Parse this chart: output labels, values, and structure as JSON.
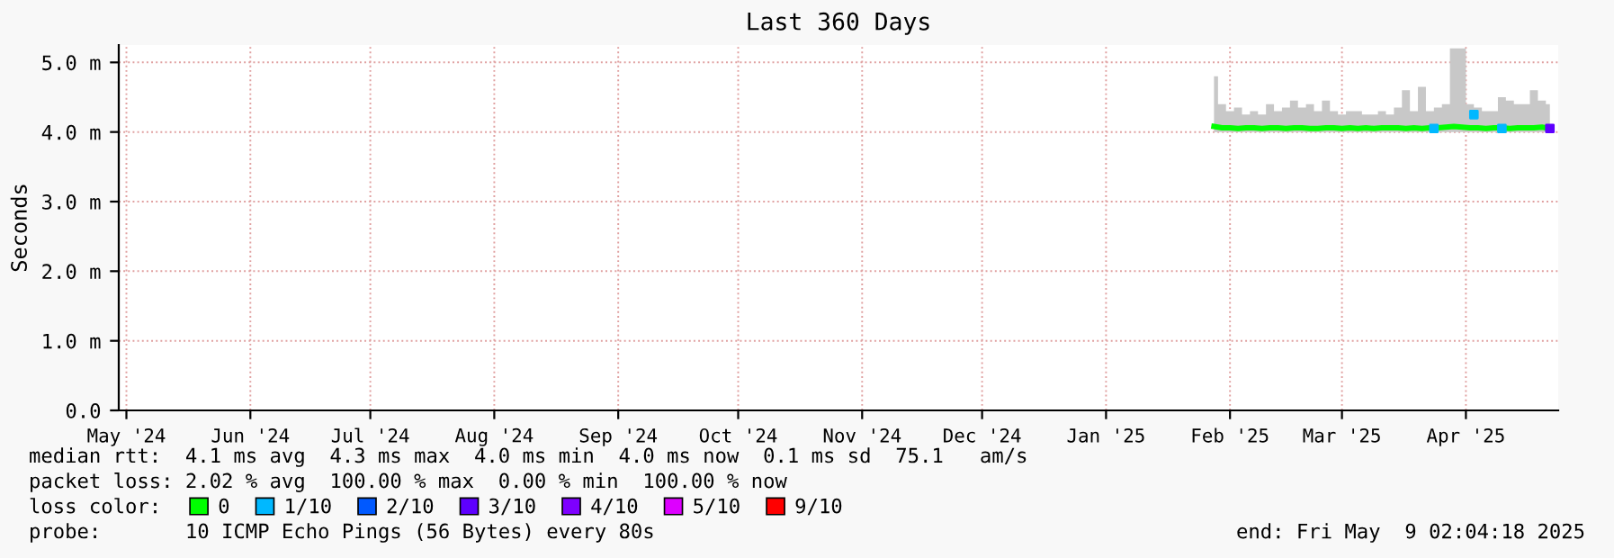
{
  "chart_data": {
    "type": "line",
    "title": "Last 360 Days",
    "ylabel": "Seconds",
    "legend_title": "loss color:",
    "legend": "bottom",
    "grid": true,
    "line_style": "solid",
    "xlim": [
      "2024-05-14T02:04",
      "2025-05-09T02:04"
    ],
    "xticks": [
      {
        "value": "2024-05-16",
        "label": "May '24"
      },
      {
        "value": "2024-06-16",
        "label": "Jun '24"
      },
      {
        "value": "2024-07-16",
        "label": "Jul '24"
      },
      {
        "value": "2024-08-16",
        "label": "Aug '24"
      },
      {
        "value": "2024-09-16",
        "label": "Sep '24"
      },
      {
        "value": "2024-10-16",
        "label": "Oct '24"
      },
      {
        "value": "2024-11-16",
        "label": "Nov '24"
      },
      {
        "value": "2024-12-16",
        "label": "Dec '24"
      },
      {
        "value": "2025-01-16",
        "label": "Jan '25"
      },
      {
        "value": "2025-02-16",
        "label": "Feb '25"
      },
      {
        "value": "2025-03-16",
        "label": "Mar '25"
      },
      {
        "value": "2025-04-16",
        "label": "Apr '25"
      }
    ],
    "ylim": [
      0,
      5.25
    ],
    "yticks": [
      {
        "value": 0,
        "label": "0.0"
      },
      {
        "value": 1,
        "label": "1.0 m"
      },
      {
        "value": 2,
        "label": "2.0 m"
      },
      {
        "value": 3,
        "label": "3.0 m"
      },
      {
        "value": 4,
        "label": "4.0 m"
      },
      {
        "value": 5,
        "label": "5.0 m"
      }
    ],
    "series": [
      {
        "name": "0",
        "color": "#00ff00",
        "x": [
          "2025-02-12",
          "2025-02-14",
          "2025-02-16",
          "2025-02-18",
          "2025-02-20",
          "2025-02-22",
          "2025-02-24",
          "2025-02-26",
          "2025-02-28",
          "2025-03-02",
          "2025-03-04",
          "2025-03-06",
          "2025-03-08",
          "2025-03-10",
          "2025-03-12",
          "2025-03-14",
          "2025-03-16",
          "2025-03-18",
          "2025-03-20",
          "2025-03-22",
          "2025-03-24",
          "2025-03-26",
          "2025-03-28",
          "2025-03-30",
          "2025-04-01",
          "2025-04-03",
          "2025-04-05",
          "2025-04-07",
          "2025-04-09",
          "2025-04-11",
          "2025-04-13",
          "2025-04-15",
          "2025-04-17",
          "2025-04-19",
          "2025-04-21",
          "2025-04-23",
          "2025-04-25",
          "2025-04-27",
          "2025-04-29",
          "2025-05-01",
          "2025-05-03",
          "2025-05-05",
          "2025-05-07"
        ],
        "values": [
          4.08,
          4.06,
          4.06,
          4.05,
          4.06,
          4.06,
          4.05,
          4.06,
          4.06,
          4.05,
          4.06,
          4.06,
          4.05,
          4.05,
          4.06,
          4.06,
          4.05,
          4.06,
          4.05,
          4.06,
          4.05,
          4.06,
          4.06,
          4.06,
          4.05,
          4.06,
          4.05,
          4.06,
          4.06,
          4.07,
          4.08,
          4.07,
          4.06,
          4.06,
          4.05,
          4.06,
          4.06,
          4.05,
          4.06,
          4.06,
          4.06,
          4.07,
          4.05
        ],
        "lower": [
          4.0,
          4.0,
          4.0,
          4.0,
          4.0,
          4.0,
          4.0,
          4.0,
          4.0,
          4.0,
          4.0,
          4.0,
          4.0,
          4.0,
          4.0,
          4.0,
          4.0,
          4.0,
          4.0,
          4.0,
          4.0,
          4.0,
          4.0,
          4.0,
          4.0,
          4.0,
          4.0,
          4.0,
          4.0,
          4.0,
          4.0,
          4.0,
          4.0,
          4.0,
          4.0,
          4.0,
          4.0,
          4.0,
          4.0,
          4.0,
          4.0,
          4.0,
          4.0
        ],
        "upper": [
          4.8,
          4.4,
          4.3,
          4.35,
          4.25,
          4.3,
          4.25,
          4.4,
          4.3,
          4.35,
          4.45,
          4.35,
          4.4,
          4.3,
          4.45,
          4.3,
          4.25,
          4.3,
          4.3,
          4.25,
          4.25,
          4.3,
          4.25,
          4.35,
          4.6,
          4.3,
          4.65,
          4.3,
          4.35,
          4.4,
          5.2,
          5.2,
          4.4,
          4.35,
          4.3,
          4.3,
          4.5,
          4.45,
          4.4,
          4.4,
          4.6,
          4.45,
          4.4
        ]
      },
      {
        "name": "1/10",
        "type": "scatter",
        "marker": "square",
        "color": "#00b8ff",
        "x": [
          "2025-04-08",
          "2025-04-18",
          "2025-04-25"
        ],
        "values": [
          4.05,
          4.25,
          4.05
        ]
      },
      {
        "name": "2/10",
        "type": "scatter",
        "color": "#0059ff"
      },
      {
        "name": "3/10",
        "type": "scatter",
        "marker": "square",
        "color": "#5e00ff",
        "x": [
          "2025-05-07"
        ],
        "values": [
          4.05
        ]
      },
      {
        "name": "4/10",
        "type": "scatter",
        "color": "#7e00ff"
      },
      {
        "name": "5/10",
        "type": "scatter",
        "color": "#dd00ff"
      },
      {
        "name": "9/10",
        "type": "scatter",
        "color": "#ff0000"
      }
    ],
    "annotations": [
      "median rtt:  4.1 ms avg  4.3 ms max  4.0 ms min  4.0 ms now  0.1 ms sd  75.1   am/s",
      "packet loss: 2.02 % avg  100.00 % max  0.00 % min  100.00 % now",
      "probe:       10 ICMP Echo Pings (56 Bytes) every 80s",
      "end: Fri May  9 02:04:18 2025"
    ]
  }
}
